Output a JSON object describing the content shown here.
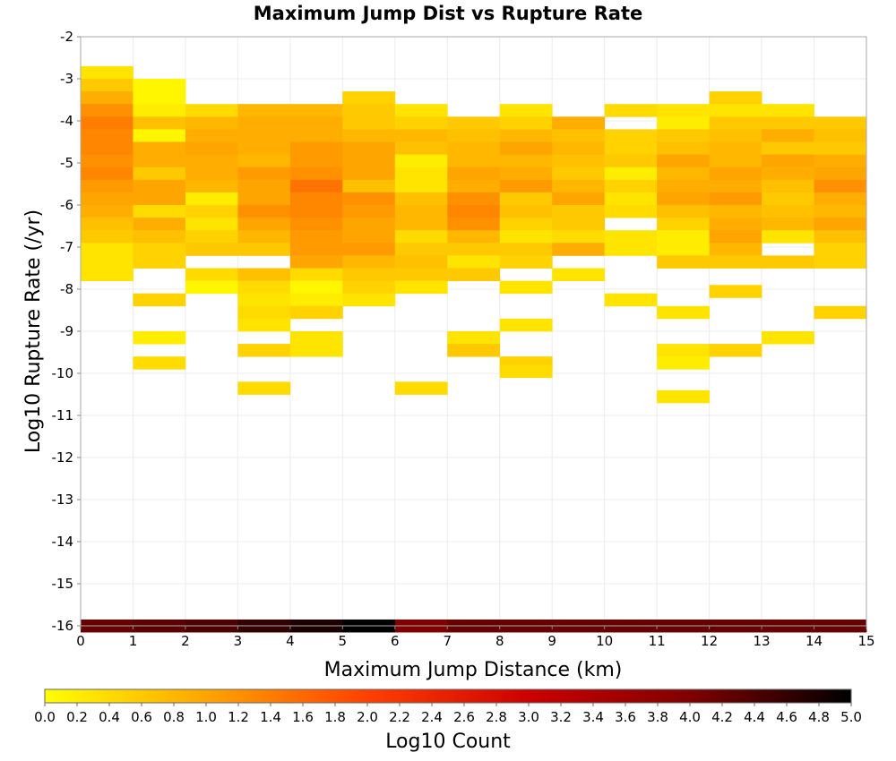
{
  "chart_data": {
    "type": "heatmap",
    "title": "Maximum Jump Dist vs Rupture Rate",
    "xlabel": "Maximum Jump Distance (km)",
    "ylabel": "Log10 Rupture Rate (/yr)",
    "xlim": [
      0,
      15
    ],
    "ylim": [
      -16,
      -2
    ],
    "x_ticks": [
      "0",
      "1",
      "2",
      "3",
      "4",
      "5",
      "6",
      "7",
      "8",
      "9",
      "10",
      "11",
      "12",
      "13",
      "14",
      "15"
    ],
    "y_ticks": [
      "-2",
      "-3",
      "-4",
      "-5",
      "-6",
      "-7",
      "-8",
      "-9",
      "-10",
      "-11",
      "-12",
      "-13",
      "-14",
      "-15",
      "-16"
    ],
    "bin_width": 1,
    "bin_height": 0.3,
    "grid": true,
    "colorbar": {
      "label": "Log10 Count",
      "range": [
        0,
        5
      ],
      "ticks": [
        "0.0",
        "0.2",
        "0.4",
        "0.6",
        "0.8",
        "1.0",
        "1.2",
        "1.4",
        "1.6",
        "1.8",
        "2.0",
        "2.2",
        "2.4",
        "2.6",
        "2.8",
        "3.0",
        "3.2",
        "3.4",
        "3.6",
        "3.8",
        "4.0",
        "4.2",
        "4.4",
        "4.6",
        "4.8",
        "5.0"
      ],
      "colors": [
        "#ffff00",
        "#ffa500",
        "#ff4000",
        "#cc0000",
        "#800000",
        "#000000"
      ]
    },
    "columns": [
      {
        "x": 0,
        "bins": [
          [
            -2.85,
            0.3
          ],
          [
            -3.15,
            0.6
          ],
          [
            -3.45,
            0.9
          ],
          [
            -3.75,
            1.2
          ],
          [
            -4.05,
            1.4
          ],
          [
            -4.35,
            1.3
          ],
          [
            -4.65,
            1.3
          ],
          [
            -4.95,
            1.2
          ],
          [
            -5.25,
            1.3
          ],
          [
            -5.55,
            1.1
          ],
          [
            -5.85,
            1.0
          ],
          [
            -6.15,
            0.9
          ],
          [
            -6.45,
            0.7
          ],
          [
            -6.75,
            0.6
          ],
          [
            -7.05,
            0.3
          ],
          [
            -7.35,
            0.3
          ],
          [
            -7.65,
            0.3
          ],
          [
            -16,
            4.2
          ]
        ]
      },
      {
        "x": 1,
        "bins": [
          [
            -3.15,
            0.1
          ],
          [
            -3.45,
            0.1
          ],
          [
            -3.75,
            0.2
          ],
          [
            -4.05,
            0.7
          ],
          [
            -4.35,
            0.1
          ],
          [
            -4.65,
            0.9
          ],
          [
            -4.95,
            0.9
          ],
          [
            -5.25,
            0.6
          ],
          [
            -5.55,
            1.0
          ],
          [
            -5.85,
            1.0
          ],
          [
            -6.15,
            0.4
          ],
          [
            -6.45,
            0.9
          ],
          [
            -6.75,
            0.7
          ],
          [
            -7.05,
            0.5
          ],
          [
            -7.35,
            0.5
          ],
          [
            -8.25,
            0.5
          ],
          [
            -9.15,
            0.2
          ],
          [
            -9.75,
            0.4
          ],
          [
            -16,
            4.3
          ]
        ]
      },
      {
        "x": 2,
        "bins": [
          [
            -3.75,
            0.4
          ],
          [
            -4.05,
            0.8
          ],
          [
            -4.35,
            0.9
          ],
          [
            -4.65,
            1.0
          ],
          [
            -4.95,
            0.9
          ],
          [
            -5.25,
            0.9
          ],
          [
            -5.55,
            0.8
          ],
          [
            -5.85,
            0.2
          ],
          [
            -6.15,
            0.5
          ],
          [
            -6.45,
            0.3
          ],
          [
            -6.75,
            0.5
          ],
          [
            -7.05,
            0.6
          ],
          [
            -7.65,
            0.4
          ],
          [
            -7.95,
            0.1
          ],
          [
            -16,
            4.4
          ]
        ]
      },
      {
        "x": 3,
        "bins": [
          [
            -3.75,
            0.8
          ],
          [
            -4.05,
            0.9
          ],
          [
            -4.35,
            0.9
          ],
          [
            -4.65,
            0.9
          ],
          [
            -4.95,
            0.8
          ],
          [
            -5.25,
            1.1
          ],
          [
            -5.55,
            1.0
          ],
          [
            -5.85,
            1.0
          ],
          [
            -6.15,
            1.2
          ],
          [
            -6.45,
            1.0
          ],
          [
            -6.75,
            0.8
          ],
          [
            -7.05,
            0.6
          ],
          [
            -7.65,
            0.7
          ],
          [
            -7.95,
            0.4
          ],
          [
            -8.25,
            0.3
          ],
          [
            -8.55,
            0.4
          ],
          [
            -8.85,
            0.3
          ],
          [
            -9.45,
            0.5
          ],
          [
            -10.35,
            0.4
          ],
          [
            -16,
            4.6
          ]
        ]
      },
      {
        "x": 4,
        "bins": [
          [
            -3.75,
            0.8
          ],
          [
            -4.05,
            0.9
          ],
          [
            -4.35,
            0.9
          ],
          [
            -4.65,
            1.1
          ],
          [
            -4.95,
            1.1
          ],
          [
            -5.25,
            1.2
          ],
          [
            -5.55,
            1.5
          ],
          [
            -5.85,
            1.3
          ],
          [
            -6.15,
            1.3
          ],
          [
            -6.45,
            1.2
          ],
          [
            -6.75,
            1.1
          ],
          [
            -7.05,
            1.1
          ],
          [
            -7.35,
            1.0
          ],
          [
            -7.65,
            0.4
          ],
          [
            -7.95,
            0.1
          ],
          [
            -8.25,
            0.2
          ],
          [
            -8.55,
            0.5
          ],
          [
            -9.15,
            0.3
          ],
          [
            -9.45,
            0.3
          ],
          [
            -16,
            4.8
          ]
        ]
      },
      {
        "x": 5,
        "bins": [
          [
            -3.45,
            0.5
          ],
          [
            -3.75,
            0.6
          ],
          [
            -4.05,
            0.6
          ],
          [
            -4.35,
            0.8
          ],
          [
            -4.65,
            1.0
          ],
          [
            -4.95,
            1.0
          ],
          [
            -5.25,
            1.0
          ],
          [
            -5.55,
            0.7
          ],
          [
            -5.85,
            1.2
          ],
          [
            -6.15,
            1.1
          ],
          [
            -6.45,
            1.0
          ],
          [
            -6.75,
            1.0
          ],
          [
            -7.05,
            1.1
          ],
          [
            -7.35,
            0.8
          ],
          [
            -7.65,
            0.6
          ],
          [
            -7.95,
            0.5
          ],
          [
            -8.25,
            0.3
          ],
          [
            -16,
            5.0
          ]
        ]
      },
      {
        "x": 6,
        "bins": [
          [
            -3.75,
            0.3
          ],
          [
            -4.05,
            0.5
          ],
          [
            -4.35,
            0.8
          ],
          [
            -4.65,
            0.7
          ],
          [
            -4.95,
            0.2
          ],
          [
            -5.25,
            0.3
          ],
          [
            -5.55,
            0.3
          ],
          [
            -5.85,
            0.7
          ],
          [
            -6.15,
            0.8
          ],
          [
            -6.45,
            0.8
          ],
          [
            -6.75,
            0.4
          ],
          [
            -7.05,
            0.6
          ],
          [
            -7.35,
            0.7
          ],
          [
            -7.65,
            0.6
          ],
          [
            -7.95,
            0.3
          ],
          [
            -10.35,
            0.4
          ],
          [
            -16,
            4.0
          ]
        ]
      },
      {
        "x": 7,
        "bins": [
          [
            -4.05,
            0.6
          ],
          [
            -4.35,
            0.7
          ],
          [
            -4.65,
            0.8
          ],
          [
            -4.95,
            0.8
          ],
          [
            -5.25,
            1.0
          ],
          [
            -5.55,
            0.9
          ],
          [
            -5.85,
            1.2
          ],
          [
            -6.15,
            1.3
          ],
          [
            -6.45,
            1.2
          ],
          [
            -6.75,
            0.8
          ],
          [
            -7.05,
            0.6
          ],
          [
            -7.35,
            0.3
          ],
          [
            -7.65,
            0.6
          ],
          [
            -9.15,
            0.3
          ],
          [
            -9.45,
            0.6
          ],
          [
            -16,
            4.2
          ]
        ]
      },
      {
        "x": 8,
        "bins": [
          [
            -3.75,
            0.3
          ],
          [
            -4.05,
            0.5
          ],
          [
            -4.35,
            0.8
          ],
          [
            -4.65,
            1.0
          ],
          [
            -4.95,
            0.8
          ],
          [
            -5.25,
            0.9
          ],
          [
            -5.55,
            1.1
          ],
          [
            -5.85,
            0.6
          ],
          [
            -6.15,
            0.7
          ],
          [
            -6.45,
            0.5
          ],
          [
            -6.75,
            0.3
          ],
          [
            -7.05,
            0.6
          ],
          [
            -7.35,
            0.5
          ],
          [
            -7.95,
            0.3
          ],
          [
            -8.85,
            0.3
          ],
          [
            -9.75,
            0.5
          ],
          [
            -9.95,
            0.4
          ],
          [
            -16,
            4.2
          ]
        ]
      },
      {
        "x": 9,
        "bins": [
          [
            -4.05,
            0.9
          ],
          [
            -4.35,
            0.7
          ],
          [
            -4.65,
            0.8
          ],
          [
            -4.95,
            0.7
          ],
          [
            -5.25,
            0.6
          ],
          [
            -5.55,
            0.8
          ],
          [
            -5.85,
            1.0
          ],
          [
            -6.15,
            0.6
          ],
          [
            -6.45,
            0.6
          ],
          [
            -6.75,
            0.4
          ],
          [
            -7.05,
            0.9
          ],
          [
            -7.65,
            0.3
          ],
          [
            -16,
            4.2
          ]
        ]
      },
      {
        "x": 10,
        "bins": [
          [
            -3.75,
            0.4
          ],
          [
            -4.35,
            0.5
          ],
          [
            -4.65,
            0.5
          ],
          [
            -4.95,
            0.6
          ],
          [
            -5.25,
            0.2
          ],
          [
            -5.55,
            0.5
          ],
          [
            -5.85,
            0.3
          ],
          [
            -6.15,
            0.4
          ],
          [
            -6.75,
            0.3
          ],
          [
            -7.05,
            0.3
          ],
          [
            -8.25,
            0.3
          ],
          [
            -16,
            4.2
          ]
        ]
      },
      {
        "x": 11,
        "bins": [
          [
            -3.75,
            0.3
          ],
          [
            -4.05,
            0.2
          ],
          [
            -4.35,
            0.6
          ],
          [
            -4.65,
            0.7
          ],
          [
            -4.95,
            1.0
          ],
          [
            -5.25,
            0.8
          ],
          [
            -5.55,
            0.9
          ],
          [
            -5.85,
            1.0
          ],
          [
            -6.15,
            0.7
          ],
          [
            -6.45,
            0.5
          ],
          [
            -6.75,
            0.2
          ],
          [
            -7.05,
            0.2
          ],
          [
            -7.35,
            0.6
          ],
          [
            -8.55,
            0.3
          ],
          [
            -9.45,
            0.3
          ],
          [
            -9.75,
            0.2
          ],
          [
            -10.55,
            0.3
          ],
          [
            -16,
            4.2
          ]
        ]
      },
      {
        "x": 12,
        "bins": [
          [
            -3.45,
            0.5
          ],
          [
            -3.75,
            0.3
          ],
          [
            -4.05,
            0.6
          ],
          [
            -4.35,
            0.7
          ],
          [
            -4.65,
            0.8
          ],
          [
            -4.95,
            0.8
          ],
          [
            -5.25,
            1.0
          ],
          [
            -5.55,
            0.9
          ],
          [
            -5.85,
            1.1
          ],
          [
            -6.15,
            0.8
          ],
          [
            -6.45,
            0.9
          ],
          [
            -6.75,
            1.0
          ],
          [
            -7.05,
            0.8
          ],
          [
            -7.35,
            0.6
          ],
          [
            -8.05,
            0.5
          ],
          [
            -9.45,
            0.5
          ],
          [
            -16,
            4.2
          ]
        ]
      },
      {
        "x": 13,
        "bins": [
          [
            -3.75,
            0.3
          ],
          [
            -4.05,
            0.6
          ],
          [
            -4.35,
            0.9
          ],
          [
            -4.65,
            0.6
          ],
          [
            -4.95,
            1.0
          ],
          [
            -5.25,
            0.9
          ],
          [
            -5.55,
            0.7
          ],
          [
            -5.85,
            0.6
          ],
          [
            -6.15,
            0.7
          ],
          [
            -6.45,
            0.8
          ],
          [
            -6.75,
            0.3
          ],
          [
            -7.35,
            0.6
          ],
          [
            -9.15,
            0.3
          ],
          [
            -16,
            4.2
          ]
        ]
      },
      {
        "x": 14,
        "bins": [
          [
            -4.05,
            0.6
          ],
          [
            -4.35,
            0.7
          ],
          [
            -4.65,
            0.6
          ],
          [
            -4.95,
            0.9
          ],
          [
            -5.25,
            1.0
          ],
          [
            -5.55,
            1.2
          ],
          [
            -5.85,
            0.9
          ],
          [
            -6.15,
            0.8
          ],
          [
            -6.45,
            1.0
          ],
          [
            -6.75,
            0.7
          ],
          [
            -7.05,
            0.5
          ],
          [
            -7.35,
            0.5
          ],
          [
            -8.55,
            0.5
          ],
          [
            -16,
            4.2
          ]
        ]
      }
    ]
  }
}
